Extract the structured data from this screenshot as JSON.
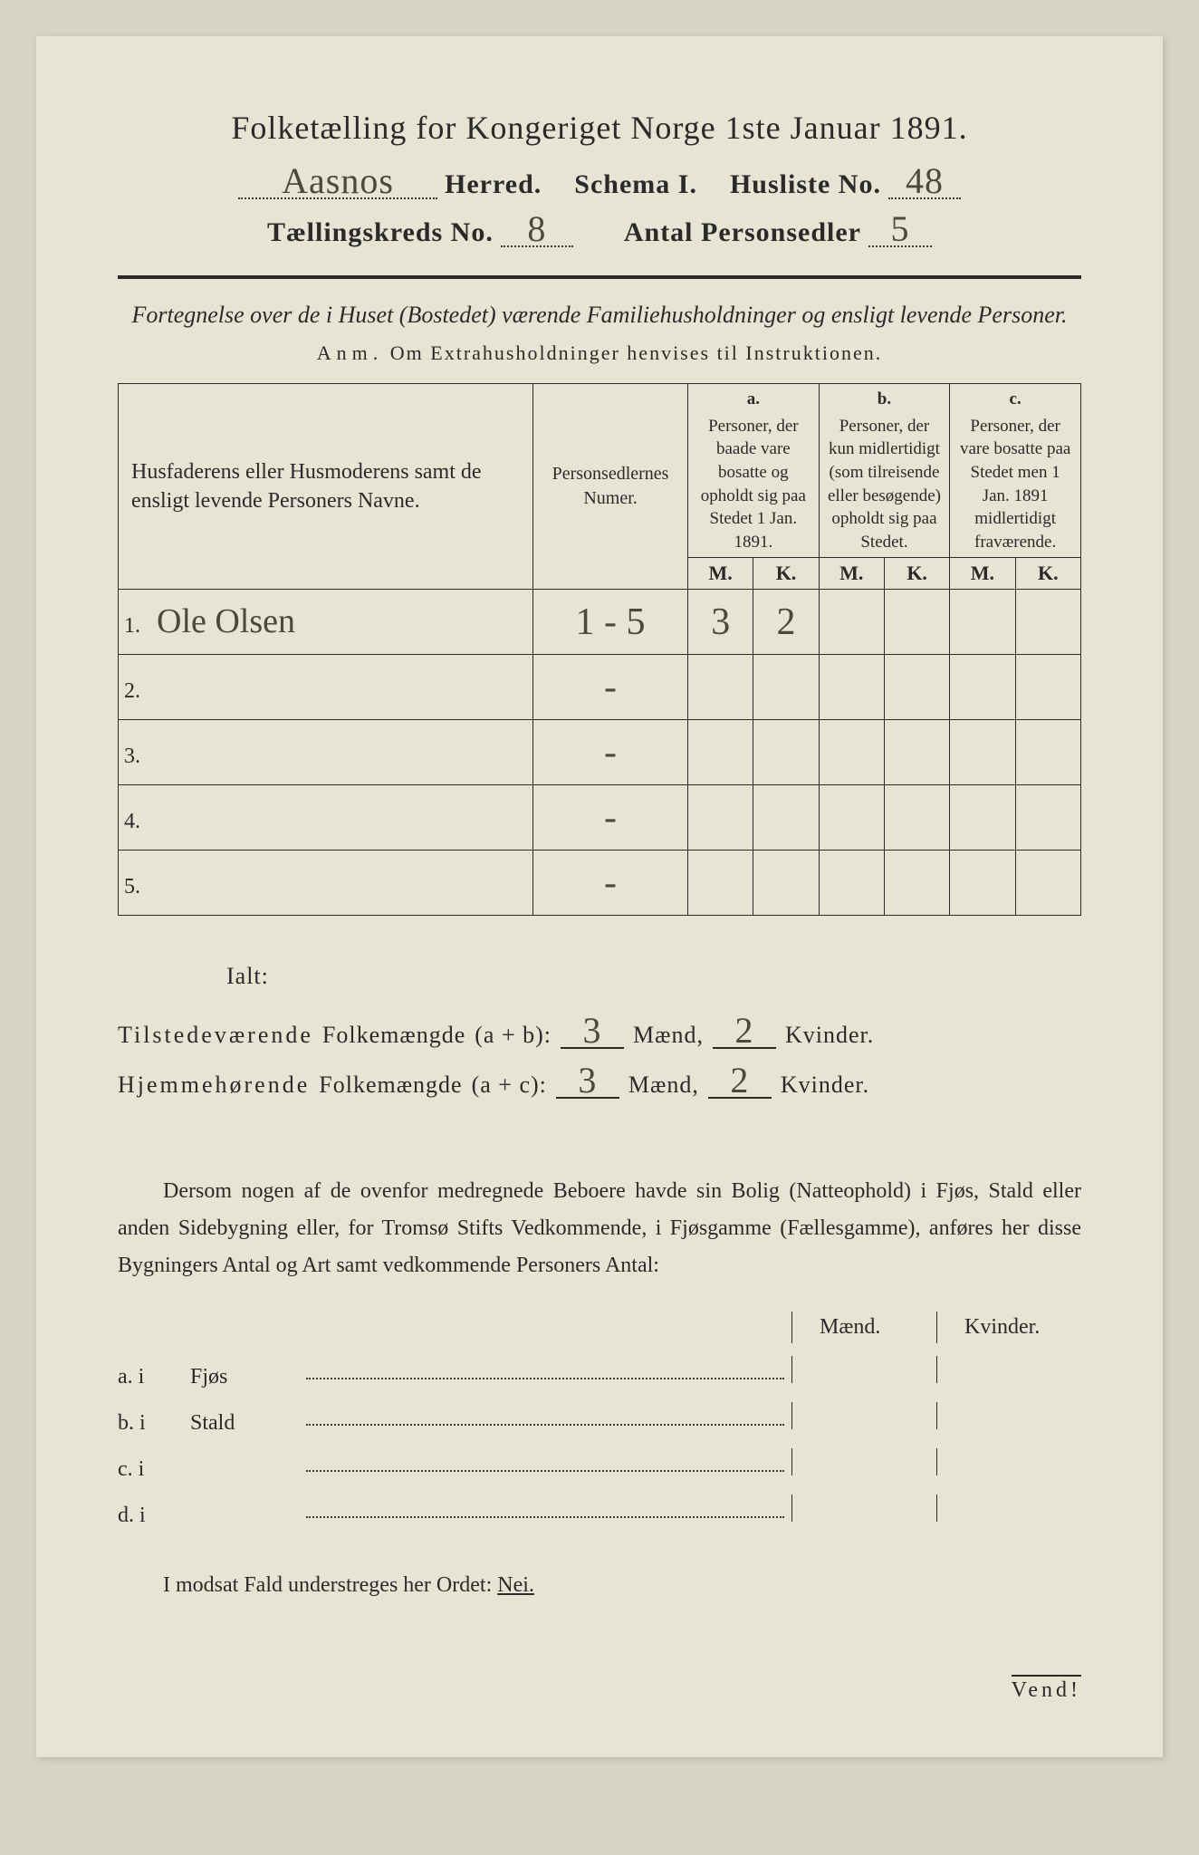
{
  "header": {
    "main_title": "Folketælling for Kongeriget Norge 1ste Januar 1891.",
    "herred_value": "Aasnos",
    "herred_label": "Herred.",
    "schema_label": "Schema I.",
    "husliste_label": "Husliste No.",
    "husliste_value": "48",
    "kreds_label": "Tællingskreds No.",
    "kreds_value": "8",
    "personsedler_label": "Antal Personsedler",
    "personsedler_value": "5"
  },
  "sub": {
    "description": "Fortegnelse over de i Huset (Bostedet) værende Familiehusholdninger og ensligt levende Personer.",
    "anm_prefix": "Anm.",
    "anm_text": "Om Extrahusholdninger henvises til Instruktionen."
  },
  "columns": {
    "name": "Husfaderens eller Husmoderens samt de ensligt levende Personers Navne.",
    "numer": "Personsedlernes Numer.",
    "a_letter": "a.",
    "a_text": "Personer, der baade vare bosatte og opholdt sig paa Stedet 1 Jan. 1891.",
    "b_letter": "b.",
    "b_text": "Personer, der kun midlertidigt (som tilreisende eller besøgende) opholdt sig paa Stedet.",
    "c_letter": "c.",
    "c_text": "Personer, der vare bosatte paa Stedet men 1 Jan. 1891 midlertidigt fraværende.",
    "m": "M.",
    "k": "K."
  },
  "rows": [
    {
      "n": "1.",
      "name": "Ole Olsen",
      "numer": "1 - 5",
      "a_m": "3",
      "a_k": "2",
      "b_m": "",
      "b_k": "",
      "c_m": "",
      "c_k": ""
    },
    {
      "n": "2.",
      "name": "",
      "numer": "-",
      "a_m": "",
      "a_k": "",
      "b_m": "",
      "b_k": "",
      "c_m": "",
      "c_k": ""
    },
    {
      "n": "3.",
      "name": "",
      "numer": "-",
      "a_m": "",
      "a_k": "",
      "b_m": "",
      "b_k": "",
      "c_m": "",
      "c_k": ""
    },
    {
      "n": "4.",
      "name": "",
      "numer": "-",
      "a_m": "",
      "a_k": "",
      "b_m": "",
      "b_k": "",
      "c_m": "",
      "c_k": ""
    },
    {
      "n": "5.",
      "name": "",
      "numer": "-",
      "a_m": "",
      "a_k": "",
      "b_m": "",
      "b_k": "",
      "c_m": "",
      "c_k": ""
    }
  ],
  "totals": {
    "ialt": "Ialt:",
    "tilstede_label": "Tilstedeværende",
    "folkemaengde": "Folkemængde",
    "ab": "(a + b):",
    "ac": "(a + c):",
    "hjemme_label": "Hjemmehørende",
    "maend": "Mænd,",
    "kvinder": "Kvinder.",
    "tilstede_m": "3",
    "tilstede_k": "2",
    "hjemme_m": "3",
    "hjemme_k": "2"
  },
  "note": {
    "para": "Dersom nogen af de ovenfor medregnede Beboere havde sin Bolig (Natteophold) i Fjøs, Stald eller anden Sidebygning eller, for Tromsø Stifts Vedkommende, i Fjøsgamme (Fællesgamme), anføres her disse Bygningers Antal og Art samt vedkommende Personers Antal:"
  },
  "bottom": {
    "maend": "Mænd.",
    "kvinder": "Kvinder.",
    "rows": [
      {
        "lbl": "a.  i",
        "type": "Fjøs"
      },
      {
        "lbl": "b.  i",
        "type": "Stald"
      },
      {
        "lbl": "c.  i",
        "type": ""
      },
      {
        "lbl": "d.  i",
        "type": ""
      }
    ]
  },
  "nei": {
    "text": "I modsat Fald understreges her Ordet:",
    "word": "Nei."
  },
  "vend": "Vend!",
  "styling": {
    "page_bg": "#e8e4d4",
    "body_bg": "#d8d4c4",
    "text_color": "#2a2a2a",
    "handwritten_color": "#4a4a3a",
    "title_fontsize": 36,
    "fill_fontsize": 30,
    "hand_fontsize": 40,
    "border_color": "#2a2a2a",
    "border_width": 1.5,
    "thick_rule_width": 4
  }
}
